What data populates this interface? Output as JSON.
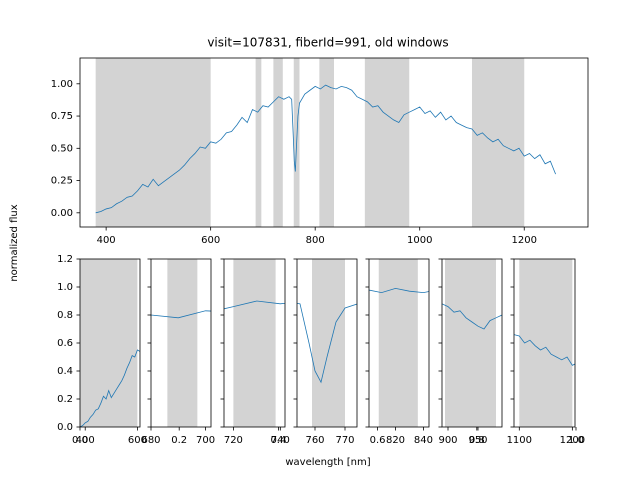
{
  "chart_data": {
    "type": "line",
    "title": "visit=107831, fiberId=991, old windows",
    "xlabel": "wavelength [nm]",
    "ylabel": "normalized flux",
    "color": "#1f77b4",
    "region_color": "#d3d3d3",
    "x": [
      380,
      390,
      400,
      410,
      420,
      430,
      440,
      450,
      460,
      470,
      480,
      490,
      500,
      510,
      520,
      530,
      540,
      550,
      560,
      570,
      580,
      590,
      600,
      610,
      620,
      630,
      640,
      650,
      660,
      670,
      680,
      690,
      700,
      710,
      720,
      730,
      740,
      750,
      755,
      758,
      760,
      762,
      764,
      767,
      770,
      780,
      790,
      800,
      810,
      820,
      830,
      840,
      850,
      860,
      870,
      880,
      890,
      900,
      910,
      920,
      930,
      940,
      950,
      960,
      970,
      980,
      990,
      1000,
      1010,
      1020,
      1030,
      1040,
      1050,
      1060,
      1070,
      1080,
      1090,
      1100,
      1110,
      1120,
      1130,
      1140,
      1150,
      1160,
      1170,
      1180,
      1190,
      1200,
      1210,
      1220,
      1230,
      1240,
      1250,
      1260
    ],
    "values": [
      0.0,
      0.01,
      0.03,
      0.04,
      0.07,
      0.09,
      0.12,
      0.13,
      0.17,
      0.22,
      0.2,
      0.26,
      0.21,
      0.24,
      0.27,
      0.3,
      0.33,
      0.37,
      0.42,
      0.46,
      0.51,
      0.5,
      0.55,
      0.54,
      0.57,
      0.62,
      0.63,
      0.68,
      0.74,
      0.7,
      0.8,
      0.78,
      0.83,
      0.82,
      0.86,
      0.9,
      0.88,
      0.9,
      0.88,
      0.6,
      0.4,
      0.32,
      0.5,
      0.75,
      0.85,
      0.92,
      0.95,
      0.98,
      0.96,
      0.99,
      0.97,
      0.96,
      0.98,
      0.97,
      0.95,
      0.9,
      0.88,
      0.86,
      0.82,
      0.83,
      0.78,
      0.75,
      0.72,
      0.7,
      0.76,
      0.78,
      0.8,
      0.82,
      0.77,
      0.79,
      0.74,
      0.78,
      0.72,
      0.75,
      0.7,
      0.68,
      0.66,
      0.65,
      0.6,
      0.62,
      0.58,
      0.55,
      0.57,
      0.52,
      0.5,
      0.48,
      0.5,
      0.44,
      0.46,
      0.42,
      0.45,
      0.38,
      0.4,
      0.3
    ],
    "regions": [
      [
        380,
        600
      ],
      [
        686,
        697
      ],
      [
        720,
        738
      ],
      [
        759,
        770
      ],
      [
        808,
        836
      ],
      [
        895,
        980
      ],
      [
        1100,
        1200
      ]
    ],
    "xlim": [
      350,
      1322
    ],
    "xticks": [
      400,
      600,
      800,
      1000,
      1200
    ],
    "ylim": [
      -0.11,
      1.2
    ],
    "yticks": [
      {
        "value": 0,
        "label": "0.00"
      },
      {
        "value": 0.25,
        "label": "0.25"
      },
      {
        "value": 0.5,
        "label": "0.50"
      },
      {
        "value": 0.75,
        "label": "0.75"
      },
      {
        "value": 1,
        "label": "1.00"
      }
    ],
    "panels": [
      {
        "xlim": [
          380,
          610
        ],
        "xticks": [
          400,
          600
        ]
      },
      {
        "xlim": [
          680,
          702
        ],
        "xticks": [
          680,
          700
        ]
      },
      {
        "xlim": [
          716,
          742
        ],
        "xticks": [
          720,
          740
        ]
      },
      {
        "xlim": [
          754,
          774
        ],
        "xticks": [
          760,
          770
        ]
      },
      {
        "xlim": [
          801,
          844
        ],
        "xticks": [
          820,
          840
        ]
      },
      {
        "xlim": [
          890,
          990
        ],
        "xticks": [
          900,
          950
        ]
      },
      {
        "xlim": [
          1090,
          1205
        ],
        "xticks": [
          1100,
          1200
        ]
      }
    ],
    "panel_ylim": [
      0,
      1.2
    ],
    "panel_yticks": [
      {
        "value": 0,
        "label": "0.0"
      },
      {
        "value": 0.2,
        "label": "0.2"
      },
      {
        "value": 0.4,
        "label": "0.4"
      },
      {
        "value": 0.6,
        "label": "0.6"
      },
      {
        "value": 0.8,
        "label": "0.8"
      },
      {
        "value": 1,
        "label": "1.0"
      },
      {
        "value": 1.2,
        "label": "1.2"
      }
    ],
    "overlay_xticks": [
      {
        "value": 0,
        "label": "0.0"
      },
      {
        "value": 0.2,
        "label": "0.2"
      },
      {
        "value": 0.4,
        "label": "0.4"
      },
      {
        "value": 0.6,
        "label": "0.6"
      },
      {
        "value": 0.8,
        "label": "0.8"
      },
      {
        "value": 1,
        "label": "1.0"
      }
    ]
  }
}
